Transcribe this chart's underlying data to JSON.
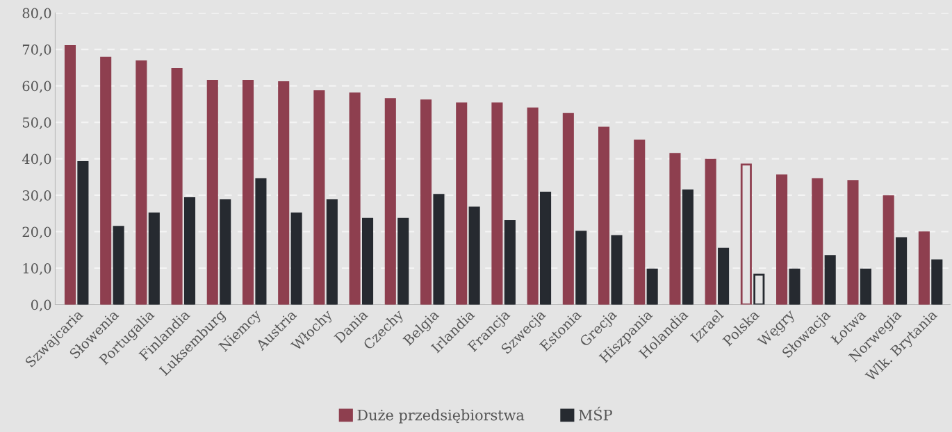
{
  "chart_data": {
    "type": "bar",
    "categories": [
      "Szwajcaria",
      "Słowenia",
      "Portugalia",
      "Finlandia",
      "Luksemburg",
      "Niemcy",
      "Austria",
      "Włochy",
      "Dania",
      "Czechy",
      "Belgia",
      "Irlandia",
      "Francja",
      "Szwecja",
      "Estonia",
      "Grecja",
      "Hiszpania",
      "Holandia",
      "Izrael",
      "Polska",
      "Węgry",
      "Słowacja",
      "Łotwa",
      "Norwegia",
      "Wlk. Brytania"
    ],
    "series": [
      {
        "name": "Duże przedsiębiorstwa",
        "color": "#8e3f4f",
        "colors": [
          "#8e3f4f",
          "#8e3f4f",
          "#8e3f4f",
          "#8e3f4f",
          "#8e3f4f",
          "#8e3f4f",
          "#8e3f4f",
          "#8e3f4f",
          "#8e3f4f",
          "#8e3f4f",
          "#8e3f4f",
          "#8e3f4f",
          "#8e3f4f",
          "#8e3f4f",
          "#8e3f4f",
          "#8e3f4f",
          "#8e3f4f",
          "#8e3f4f",
          "#8e3f4f",
          "#e4e4e4",
          "#8e3f4f",
          "#8e3f4f",
          "#8e3f4f",
          "#8e3f4f",
          "#8e3f4f"
        ],
        "values": [
          70.9,
          67.7,
          66.7,
          64.6,
          61.4,
          61.4,
          61.0,
          58.5,
          57.9,
          56.4,
          56.0,
          55.2,
          55.2,
          53.8,
          52.3,
          48.5,
          45.0,
          41.3,
          39.7,
          38.4,
          35.4,
          34.4,
          33.9,
          29.7,
          19.8
        ]
      },
      {
        "name": "MŚP",
        "color": "#262a30",
        "colors": [
          "#262a30",
          "#262a30",
          "#262a30",
          "#262a30",
          "#262a30",
          "#262a30",
          "#262a30",
          "#262a30",
          "#262a30",
          "#262a30",
          "#262a30",
          "#262a30",
          "#262a30",
          "#262a30",
          "#262a30",
          "#262a30",
          "#262a30",
          "#262a30",
          "#262a30",
          "#e4e4e4",
          "#262a30",
          "#262a30",
          "#262a30",
          "#262a30",
          "#262a30"
        ],
        "values": [
          39.1,
          21.3,
          25.0,
          29.2,
          28.6,
          34.4,
          25.0,
          28.6,
          23.5,
          23.5,
          30.1,
          26.6,
          22.9,
          30.7,
          20.0,
          18.8,
          9.6,
          31.3,
          15.3,
          8.2,
          9.6,
          13.3,
          9.6,
          18.2,
          12.1
        ]
      }
    ],
    "ylim": [
      0,
      80
    ],
    "yticks": [
      {
        "value": 0,
        "label": "0,0"
      },
      {
        "value": 10,
        "label": "10,0"
      },
      {
        "value": 20,
        "label": "20,0"
      },
      {
        "value": 30,
        "label": "30,0"
      },
      {
        "value": 40,
        "label": "40,0"
      },
      {
        "value": 50,
        "label": "50,0"
      },
      {
        "value": 60,
        "label": "60,0"
      },
      {
        "value": 70,
        "label": "70,0"
      },
      {
        "value": 80,
        "label": "80,0"
      }
    ],
    "grid": "y",
    "legend": "bottom"
  }
}
